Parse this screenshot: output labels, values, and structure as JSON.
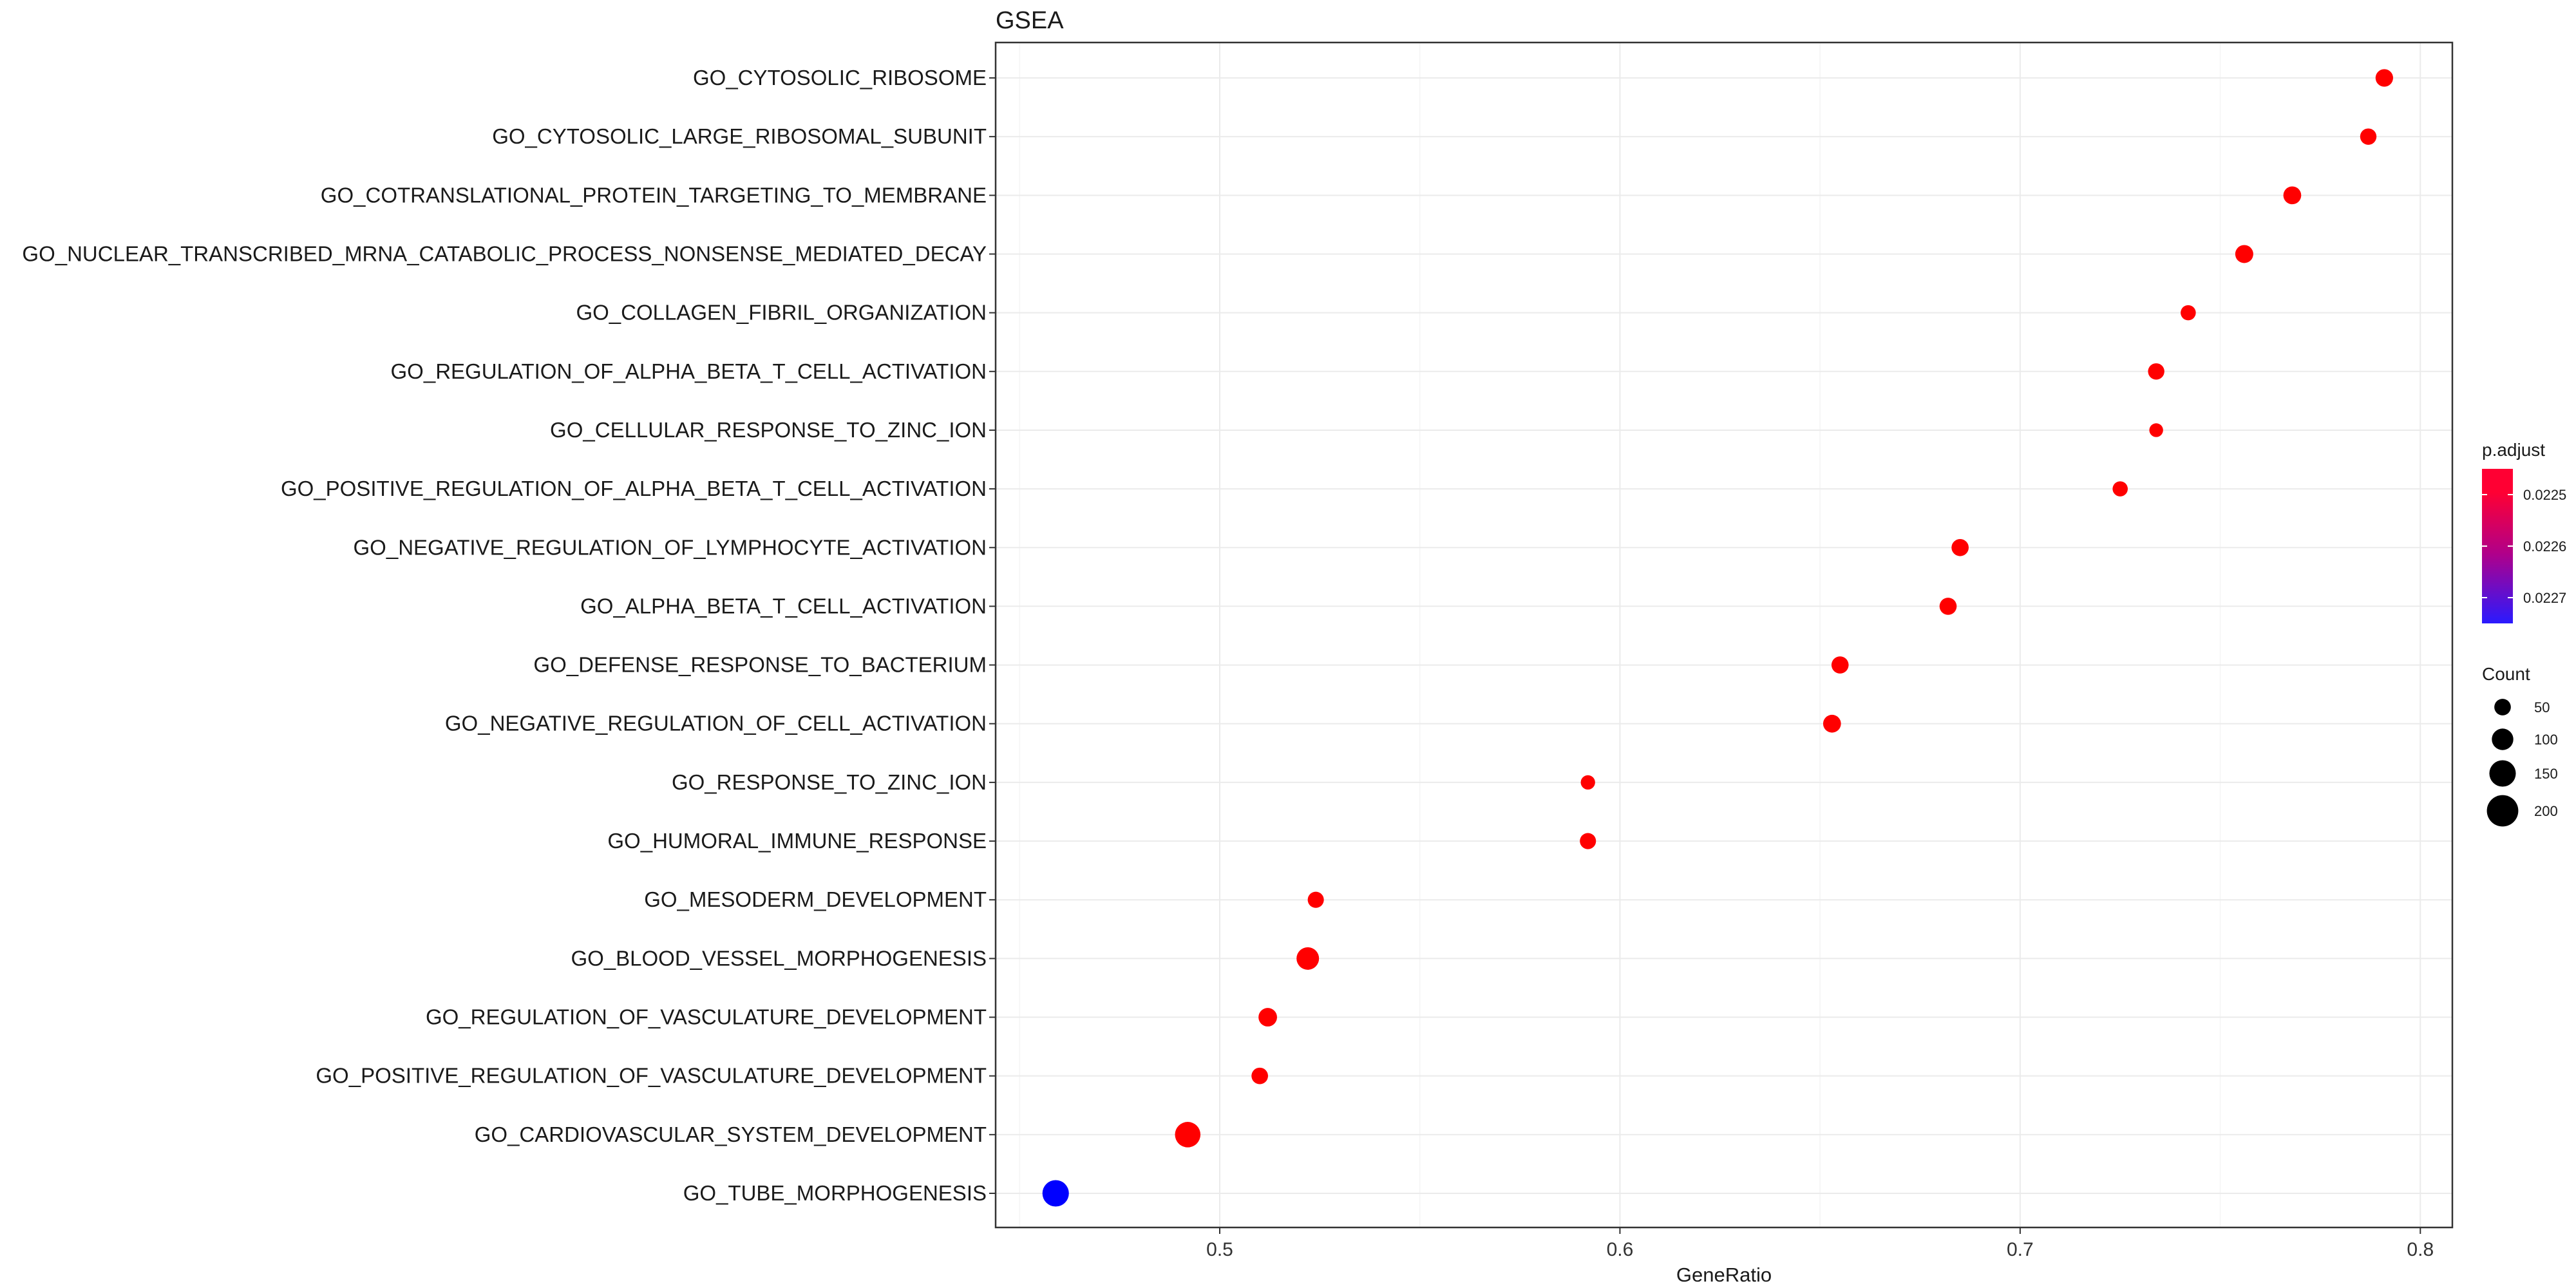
{
  "chart_data": {
    "type": "scatter",
    "title": "GSEA",
    "xlabel": "GeneRatio",
    "ylabel": "",
    "xlim": [
      0.444,
      0.808
    ],
    "x_ticks": [
      0.5,
      0.6,
      0.7,
      0.8
    ],
    "x_tick_labels": [
      "0.5",
      "0.6",
      "0.7",
      "0.8"
    ],
    "grid": true,
    "categories": [
      "GO_CYTOSOLIC_RIBOSOME",
      "GO_CYTOSOLIC_LARGE_RIBOSOMAL_SUBUNIT",
      "GO_COTRANSLATIONAL_PROTEIN_TARGETING_TO_MEMBRANE",
      "GO_NUCLEAR_TRANSCRIBED_MRNA_CATABOLIC_PROCESS_NONSENSE_MEDIATED_DECAY",
      "GO_COLLAGEN_FIBRIL_ORGANIZATION",
      "GO_REGULATION_OF_ALPHA_BETA_T_CELL_ACTIVATION",
      "GO_CELLULAR_RESPONSE_TO_ZINC_ION",
      "GO_POSITIVE_REGULATION_OF_ALPHA_BETA_T_CELL_ACTIVATION",
      "GO_NEGATIVE_REGULATION_OF_LYMPHOCYTE_ACTIVATION",
      "GO_ALPHA_BETA_T_CELL_ACTIVATION",
      "GO_DEFENSE_RESPONSE_TO_BACTERIUM",
      "GO_NEGATIVE_REGULATION_OF_CELL_ACTIVATION",
      "GO_RESPONSE_TO_ZINC_ION",
      "GO_HUMORAL_IMMUNE_RESPONSE",
      "GO_MESODERM_DEVELOPMENT",
      "GO_BLOOD_VESSEL_MORPHOGENESIS",
      "GO_REGULATION_OF_VASCULATURE_DEVELOPMENT",
      "GO_POSITIVE_REGULATION_OF_VASCULATURE_DEVELOPMENT",
      "GO_CARDIOVASCULAR_SYSTEM_DEVELOPMENT",
      "GO_TUBE_MORPHOGENESIS"
    ],
    "gene_ratio": [
      0.791,
      0.787,
      0.768,
      0.756,
      0.742,
      0.734,
      0.734,
      0.725,
      0.685,
      0.682,
      0.655,
      0.653,
      0.592,
      0.592,
      0.524,
      0.522,
      0.512,
      0.51,
      0.492,
      0.459
    ],
    "count": [
      60,
      48,
      63,
      65,
      36,
      48,
      22,
      36,
      56,
      56,
      56,
      63,
      28,
      46,
      46,
      110,
      70,
      50,
      140,
      150
    ],
    "p_adjust": [
      0.02245,
      0.02245,
      0.02245,
      0.02245,
      0.02245,
      0.02245,
      0.02245,
      0.02245,
      0.02245,
      0.02245,
      0.02245,
      0.02245,
      0.02245,
      0.02245,
      0.02245,
      0.02245,
      0.02245,
      0.02245,
      0.02245,
      0.02274
    ],
    "legend": {
      "color": {
        "title": "p.adjust",
        "breaks": [
          0.0225,
          0.0226,
          0.0227
        ],
        "labels": [
          "0.0225",
          "0.0226",
          "0.0227"
        ],
        "low_color": "#ff0000",
        "high_color": "#0000ff"
      },
      "size": {
        "title": "Count",
        "breaks": [
          50,
          100,
          150,
          200
        ],
        "labels": [
          "50",
          "100",
          "150",
          "200"
        ]
      },
      "placement": "right"
    }
  }
}
